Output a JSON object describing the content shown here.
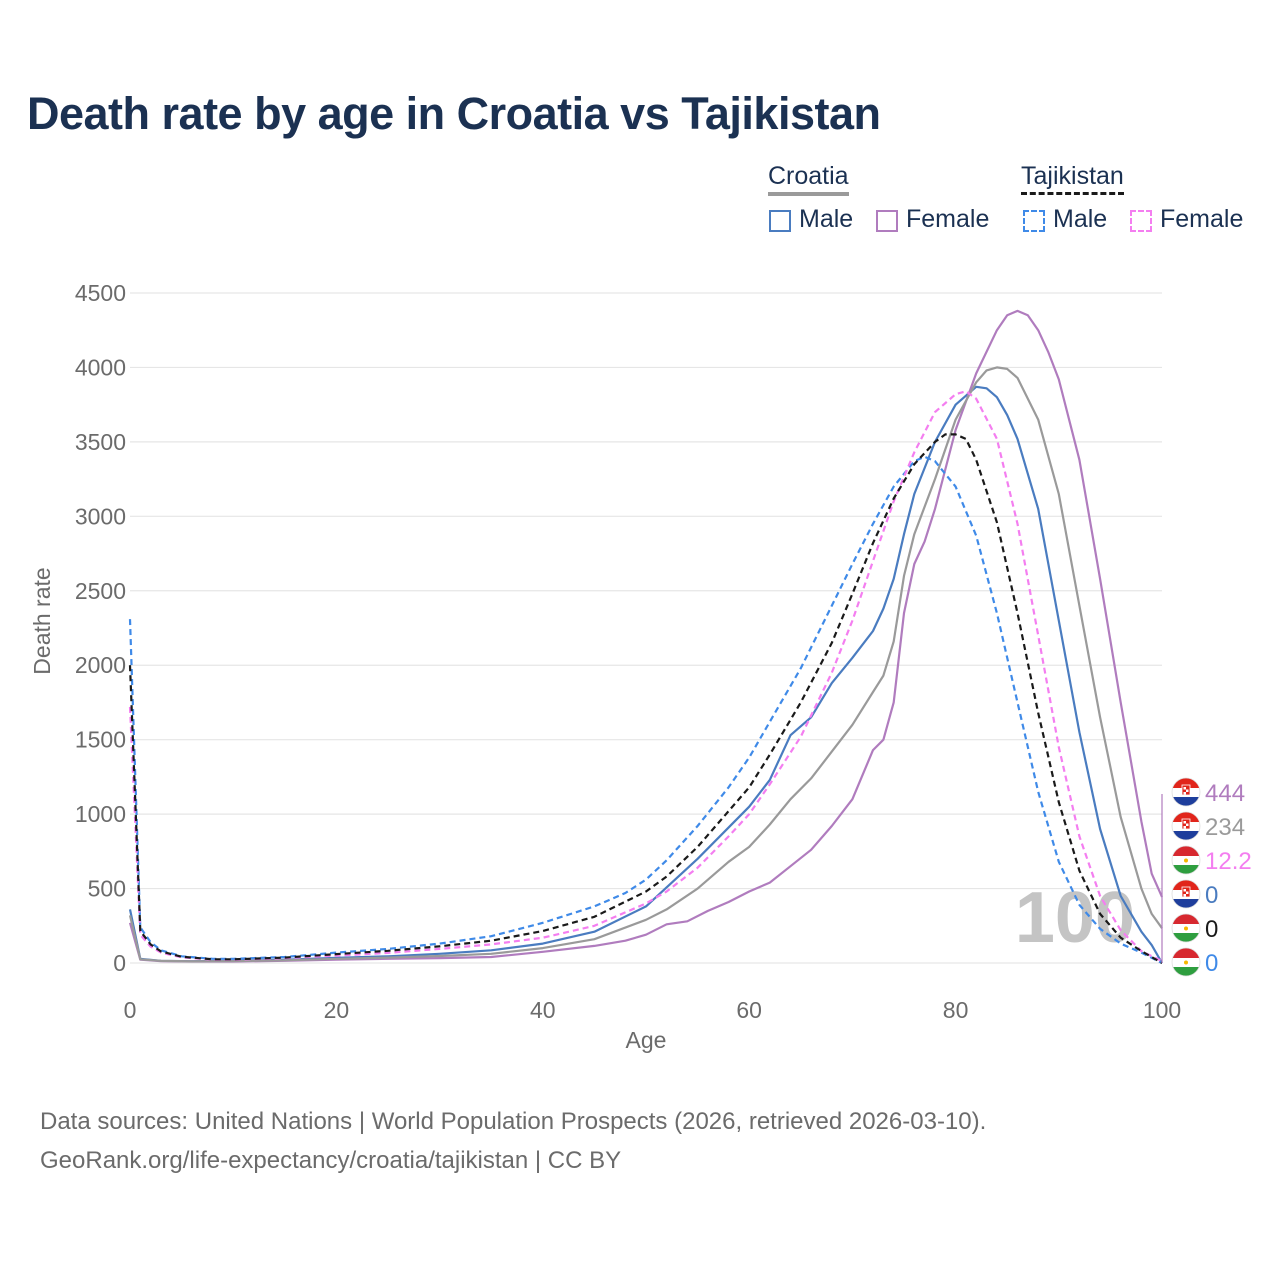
{
  "title": "Death rate by age in Croatia vs Tajikistan",
  "legend": {
    "croatia": {
      "label": "Croatia",
      "male": "Male",
      "female": "Female"
    },
    "tajikistan": {
      "label": "Tajikistan",
      "male": "Male",
      "female": "Female"
    }
  },
  "footer": {
    "line1": "Data sources: United Nations | World Population Prospects (2026, retrieved 2026-03-10).",
    "line2": "GeoRank.org/life-expectancy/croatia/tajikistan | CC BY"
  },
  "age_watermark": "100",
  "colors": {
    "title": "#1b3152",
    "croatia_male": "#4a7cc0",
    "croatia_female": "#b07cbe",
    "croatia_total": "#9a9a9a",
    "tajikistan_male": "#3f8ae8",
    "tajikistan_female": "#f47ef0",
    "tajikistan_total": "#1a1a1a",
    "grid": "#e6e6e6",
    "axis_text": "#6b6b6b"
  },
  "end_labels": [
    {
      "value": "444",
      "country": "croatia",
      "series": "Croatia Female"
    },
    {
      "value": "234",
      "country": "croatia",
      "series": "Croatia Total"
    },
    {
      "value": "12.2",
      "country": "tajikistan",
      "series": "Tajikistan Female"
    },
    {
      "value": "0",
      "country": "croatia",
      "series": "Croatia Male"
    },
    {
      "value": "0",
      "country": "tajikistan",
      "series": "Tajikistan Total"
    },
    {
      "value": "0",
      "country": "tajikistan",
      "series": "Tajikistan Male"
    }
  ],
  "chart_data": {
    "type": "line",
    "title": "Death rate by age in Croatia vs Tajikistan",
    "xlabel": "Age",
    "ylabel": "Death rate",
    "xlim": [
      0,
      100
    ],
    "ylim": [
      0,
      4500
    ],
    "xticks": [
      0,
      20,
      40,
      60,
      80,
      100
    ],
    "yticks": [
      0,
      500,
      1000,
      1500,
      2000,
      2500,
      3000,
      3500,
      4000,
      4500
    ],
    "series": [
      {
        "name": "Croatia Male",
        "country": "Croatia",
        "sex": "Male",
        "dash": false,
        "points": [
          [
            0,
            360
          ],
          [
            1,
            28
          ],
          [
            3,
            15
          ],
          [
            6,
            12
          ],
          [
            10,
            14
          ],
          [
            15,
            22
          ],
          [
            20,
            35
          ],
          [
            25,
            45
          ],
          [
            30,
            62
          ],
          [
            35,
            85
          ],
          [
            40,
            130
          ],
          [
            45,
            210
          ],
          [
            50,
            380
          ],
          [
            55,
            700
          ],
          [
            60,
            1050
          ],
          [
            62,
            1230
          ],
          [
            64,
            1530
          ],
          [
            66,
            1650
          ],
          [
            68,
            1880
          ],
          [
            70,
            2050
          ],
          [
            72,
            2230
          ],
          [
            73,
            2380
          ],
          [
            74,
            2580
          ],
          [
            75,
            2880
          ],
          [
            76,
            3150
          ],
          [
            78,
            3500
          ],
          [
            80,
            3750
          ],
          [
            82,
            3870
          ],
          [
            83,
            3860
          ],
          [
            84,
            3800
          ],
          [
            85,
            3680
          ],
          [
            86,
            3520
          ],
          [
            88,
            3050
          ],
          [
            90,
            2300
          ],
          [
            92,
            1550
          ],
          [
            94,
            900
          ],
          [
            96,
            450
          ],
          [
            98,
            210
          ],
          [
            99,
            120
          ],
          [
            100,
            0
          ]
        ]
      },
      {
        "name": "Croatia Female",
        "country": "Croatia",
        "sex": "Female",
        "dash": false,
        "points": [
          [
            0,
            270
          ],
          [
            1,
            22
          ],
          [
            3,
            12
          ],
          [
            6,
            10
          ],
          [
            10,
            10
          ],
          [
            15,
            15
          ],
          [
            20,
            22
          ],
          [
            25,
            28
          ],
          [
            30,
            33
          ],
          [
            35,
            40
          ],
          [
            40,
            75
          ],
          [
            45,
            115
          ],
          [
            48,
            150
          ],
          [
            50,
            190
          ],
          [
            52,
            260
          ],
          [
            54,
            280
          ],
          [
            56,
            350
          ],
          [
            58,
            410
          ],
          [
            60,
            480
          ],
          [
            62,
            540
          ],
          [
            64,
            650
          ],
          [
            66,
            760
          ],
          [
            68,
            920
          ],
          [
            70,
            1100
          ],
          [
            72,
            1430
          ],
          [
            73,
            1500
          ],
          [
            74,
            1750
          ],
          [
            75,
            2350
          ],
          [
            76,
            2680
          ],
          [
            77,
            2830
          ],
          [
            78,
            3050
          ],
          [
            80,
            3580
          ],
          [
            82,
            3960
          ],
          [
            84,
            4250
          ],
          [
            85,
            4350
          ],
          [
            86,
            4380
          ],
          [
            87,
            4350
          ],
          [
            88,
            4250
          ],
          [
            89,
            4100
          ],
          [
            90,
            3920
          ],
          [
            92,
            3380
          ],
          [
            94,
            2580
          ],
          [
            96,
            1750
          ],
          [
            98,
            950
          ],
          [
            99,
            600
          ],
          [
            100,
            444
          ]
        ]
      },
      {
        "name": "Croatia Total",
        "country": "Croatia",
        "sex": "Total",
        "dash": false,
        "points": [
          [
            0,
            320
          ],
          [
            1,
            25
          ],
          [
            3,
            14
          ],
          [
            6,
            11
          ],
          [
            10,
            12
          ],
          [
            15,
            18
          ],
          [
            20,
            28
          ],
          [
            25,
            36
          ],
          [
            30,
            47
          ],
          [
            35,
            62
          ],
          [
            40,
            100
          ],
          [
            45,
            160
          ],
          [
            50,
            290
          ],
          [
            52,
            360
          ],
          [
            55,
            500
          ],
          [
            58,
            680
          ],
          [
            60,
            780
          ],
          [
            62,
            930
          ],
          [
            64,
            1100
          ],
          [
            66,
            1240
          ],
          [
            68,
            1420
          ],
          [
            70,
            1600
          ],
          [
            72,
            1820
          ],
          [
            73,
            1930
          ],
          [
            74,
            2160
          ],
          [
            75,
            2600
          ],
          [
            76,
            2880
          ],
          [
            78,
            3250
          ],
          [
            80,
            3650
          ],
          [
            82,
            3900
          ],
          [
            83,
            3980
          ],
          [
            84,
            4000
          ],
          [
            85,
            3990
          ],
          [
            86,
            3930
          ],
          [
            88,
            3650
          ],
          [
            90,
            3150
          ],
          [
            92,
            2400
          ],
          [
            94,
            1650
          ],
          [
            96,
            980
          ],
          [
            98,
            500
          ],
          [
            99,
            330
          ],
          [
            100,
            234
          ]
        ]
      },
      {
        "name": "Tajikistan Male",
        "country": "Tajikistan",
        "sex": "Male",
        "dash": true,
        "points": [
          [
            0,
            2310
          ],
          [
            1,
            240
          ],
          [
            2,
            140
          ],
          [
            3,
            85
          ],
          [
            5,
            45
          ],
          [
            8,
            28
          ],
          [
            10,
            28
          ],
          [
            15,
            40
          ],
          [
            20,
            70
          ],
          [
            25,
            95
          ],
          [
            30,
            130
          ],
          [
            35,
            180
          ],
          [
            40,
            270
          ],
          [
            45,
            380
          ],
          [
            48,
            470
          ],
          [
            50,
            560
          ],
          [
            52,
            690
          ],
          [
            55,
            920
          ],
          [
            58,
            1180
          ],
          [
            60,
            1380
          ],
          [
            62,
            1620
          ],
          [
            65,
            1980
          ],
          [
            68,
            2400
          ],
          [
            70,
            2680
          ],
          [
            72,
            2950
          ],
          [
            74,
            3200
          ],
          [
            76,
            3370
          ],
          [
            77,
            3400
          ],
          [
            78,
            3370
          ],
          [
            80,
            3200
          ],
          [
            82,
            2870
          ],
          [
            84,
            2350
          ],
          [
            86,
            1750
          ],
          [
            88,
            1150
          ],
          [
            90,
            680
          ],
          [
            92,
            390
          ],
          [
            94,
            230
          ],
          [
            96,
            130
          ],
          [
            98,
            70
          ],
          [
            100,
            0
          ]
        ]
      },
      {
        "name": "Tajikistan Female",
        "country": "Tajikistan",
        "sex": "Female",
        "dash": true,
        "points": [
          [
            0,
            1720
          ],
          [
            1,
            190
          ],
          [
            2,
            110
          ],
          [
            3,
            70
          ],
          [
            5,
            38
          ],
          [
            8,
            22
          ],
          [
            10,
            22
          ],
          [
            15,
            32
          ],
          [
            20,
            50
          ],
          [
            25,
            68
          ],
          [
            30,
            95
          ],
          [
            35,
            125
          ],
          [
            40,
            170
          ],
          [
            45,
            250
          ],
          [
            50,
            400
          ],
          [
            52,
            480
          ],
          [
            55,
            640
          ],
          [
            58,
            850
          ],
          [
            60,
            1000
          ],
          [
            62,
            1200
          ],
          [
            65,
            1520
          ],
          [
            68,
            1950
          ],
          [
            70,
            2300
          ],
          [
            72,
            2700
          ],
          [
            74,
            3100
          ],
          [
            76,
            3430
          ],
          [
            78,
            3700
          ],
          [
            80,
            3820
          ],
          [
            81,
            3840
          ],
          [
            82,
            3790
          ],
          [
            84,
            3520
          ],
          [
            86,
            2950
          ],
          [
            88,
            2200
          ],
          [
            90,
            1450
          ],
          [
            92,
            850
          ],
          [
            94,
            450
          ],
          [
            96,
            220
          ],
          [
            98,
            80
          ],
          [
            100,
            12.2
          ]
        ]
      },
      {
        "name": "Tajikistan Total",
        "country": "Tajikistan",
        "sex": "Total",
        "dash": true,
        "points": [
          [
            0,
            2000
          ],
          [
            1,
            215
          ],
          [
            2,
            125
          ],
          [
            3,
            78
          ],
          [
            5,
            42
          ],
          [
            8,
            25
          ],
          [
            10,
            25
          ],
          [
            15,
            36
          ],
          [
            20,
            60
          ],
          [
            25,
            82
          ],
          [
            30,
            112
          ],
          [
            35,
            150
          ],
          [
            40,
            215
          ],
          [
            45,
            310
          ],
          [
            50,
            480
          ],
          [
            52,
            580
          ],
          [
            55,
            780
          ],
          [
            58,
            1020
          ],
          [
            60,
            1180
          ],
          [
            62,
            1400
          ],
          [
            65,
            1750
          ],
          [
            68,
            2150
          ],
          [
            70,
            2480
          ],
          [
            72,
            2820
          ],
          [
            74,
            3120
          ],
          [
            76,
            3350
          ],
          [
            78,
            3500
          ],
          [
            79,
            3550
          ],
          [
            80,
            3550
          ],
          [
            81,
            3520
          ],
          [
            82,
            3380
          ],
          [
            84,
            2960
          ],
          [
            86,
            2350
          ],
          [
            88,
            1680
          ],
          [
            90,
            1080
          ],
          [
            92,
            620
          ],
          [
            94,
            330
          ],
          [
            96,
            170
          ],
          [
            98,
            80
          ],
          [
            100,
            0
          ]
        ]
      }
    ]
  }
}
